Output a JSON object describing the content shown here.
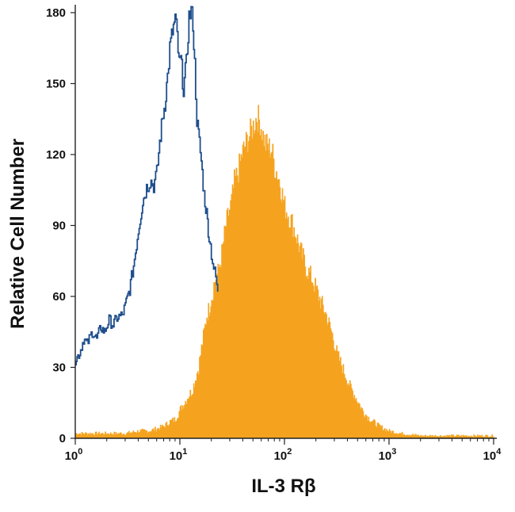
{
  "chart_data": {
    "type": "histogram-overlay",
    "xlabel": "IL-3 Rβ",
    "ylabel": "Relative Cell Number",
    "x_scale": "log10",
    "xlim": [
      1,
      10000
    ],
    "ylim": [
      0,
      182
    ],
    "x_ticks": [
      {
        "value": 1,
        "base": "10",
        "exp": "0"
      },
      {
        "value": 10,
        "base": "10",
        "exp": "1"
      },
      {
        "value": 100,
        "base": "10",
        "exp": "2"
      },
      {
        "value": 1000,
        "base": "10",
        "exp": "3"
      },
      {
        "value": 10000,
        "base": "10",
        "exp": "4"
      }
    ],
    "y_ticks": [
      0,
      30,
      60,
      90,
      120,
      150,
      180
    ],
    "grid": false,
    "series": [
      {
        "style": "outline",
        "color": "#1f4e8c",
        "points": [
          [
            1.0,
            33
          ],
          [
            1.1,
            36
          ],
          [
            1.2,
            42
          ],
          [
            1.3,
            40
          ],
          [
            1.45,
            45
          ],
          [
            1.6,
            42
          ],
          [
            1.75,
            47
          ],
          [
            1.9,
            45
          ],
          [
            2.1,
            50
          ],
          [
            2.3,
            48
          ],
          [
            2.5,
            51
          ],
          [
            2.8,
            52
          ],
          [
            3.0,
            56
          ],
          [
            3.3,
            63
          ],
          [
            3.6,
            73
          ],
          [
            4.0,
            88
          ],
          [
            4.4,
            100
          ],
          [
            4.8,
            106
          ],
          [
            5.2,
            109
          ],
          [
            5.6,
            107
          ],
          [
            6.0,
            112
          ],
          [
            6.4,
            125
          ],
          [
            6.8,
            135
          ],
          [
            7.2,
            142
          ],
          [
            7.6,
            153
          ],
          [
            8.0,
            165
          ],
          [
            8.5,
            172
          ],
          [
            9.0,
            177
          ],
          [
            9.4,
            170
          ],
          [
            9.8,
            158
          ],
          [
            10.2,
            160
          ],
          [
            10.8,
            148
          ],
          [
            11.5,
            158
          ],
          [
            12.2,
            178
          ],
          [
            12.8,
            181
          ],
          [
            13.3,
            176
          ],
          [
            13.8,
            158
          ],
          [
            14.5,
            135
          ],
          [
            15.3,
            125
          ],
          [
            16.0,
            117
          ],
          [
            17.0,
            103
          ],
          [
            18.0,
            95
          ],
          [
            19.0,
            85
          ],
          [
            20.0,
            78
          ],
          [
            21.0,
            72
          ],
          [
            22.0,
            68
          ],
          [
            23.0,
            62
          ]
        ]
      },
      {
        "style": "filled",
        "color": "#f5a31f",
        "points": [
          [
            1.0,
            2
          ],
          [
            2.0,
            2
          ],
          [
            3.0,
            2
          ],
          [
            4.0,
            3
          ],
          [
            5.0,
            3
          ],
          [
            6.0,
            4
          ],
          [
            7.0,
            5
          ],
          [
            8.0,
            7
          ],
          [
            9.0,
            8
          ],
          [
            10.0,
            12
          ],
          [
            11.0,
            15
          ],
          [
            12.0,
            18
          ],
          [
            13.0,
            20
          ],
          [
            14.0,
            25
          ],
          [
            15.0,
            30
          ],
          [
            16.0,
            38
          ],
          [
            17.0,
            45
          ],
          [
            18.0,
            52
          ],
          [
            19.0,
            55
          ],
          [
            20.0,
            60
          ],
          [
            21.0,
            65
          ],
          [
            22.0,
            68
          ],
          [
            23.0,
            70
          ],
          [
            25.0,
            78
          ],
          [
            27.0,
            88
          ],
          [
            29.0,
            95
          ],
          [
            31.0,
            100
          ],
          [
            33.0,
            108
          ],
          [
            36.0,
            113
          ],
          [
            39.0,
            120
          ],
          [
            42.0,
            124
          ],
          [
            46.0,
            128
          ],
          [
            50.0,
            132
          ],
          [
            54.0,
            136
          ],
          [
            58.0,
            134
          ],
          [
            62.0,
            128
          ],
          [
            66.0,
            124
          ],
          [
            70.0,
            123
          ],
          [
            75.0,
            122
          ],
          [
            80.0,
            115
          ],
          [
            85.0,
            112
          ],
          [
            90.0,
            108
          ],
          [
            95.0,
            103
          ],
          [
            100.0,
            98
          ],
          [
            110.0,
            94
          ],
          [
            120.0,
            90
          ],
          [
            130.0,
            85
          ],
          [
            140.0,
            80
          ],
          [
            150.0,
            76
          ],
          [
            160.0,
            72
          ],
          [
            170.0,
            70
          ],
          [
            180.0,
            68
          ],
          [
            200.0,
            63
          ],
          [
            220.0,
            58
          ],
          [
            250.0,
            52
          ],
          [
            280.0,
            45
          ],
          [
            320.0,
            35
          ],
          [
            370.0,
            28
          ],
          [
            420.0,
            22
          ],
          [
            480.0,
            17
          ],
          [
            550.0,
            12
          ],
          [
            620.0,
            9
          ],
          [
            700.0,
            7
          ],
          [
            800.0,
            5
          ],
          [
            1000.0,
            3
          ],
          [
            1300.0,
            2
          ],
          [
            2000.0,
            1
          ],
          [
            4000.0,
            1
          ],
          [
            8000.0,
            1
          ],
          [
            10000.0,
            1
          ]
        ]
      }
    ]
  }
}
